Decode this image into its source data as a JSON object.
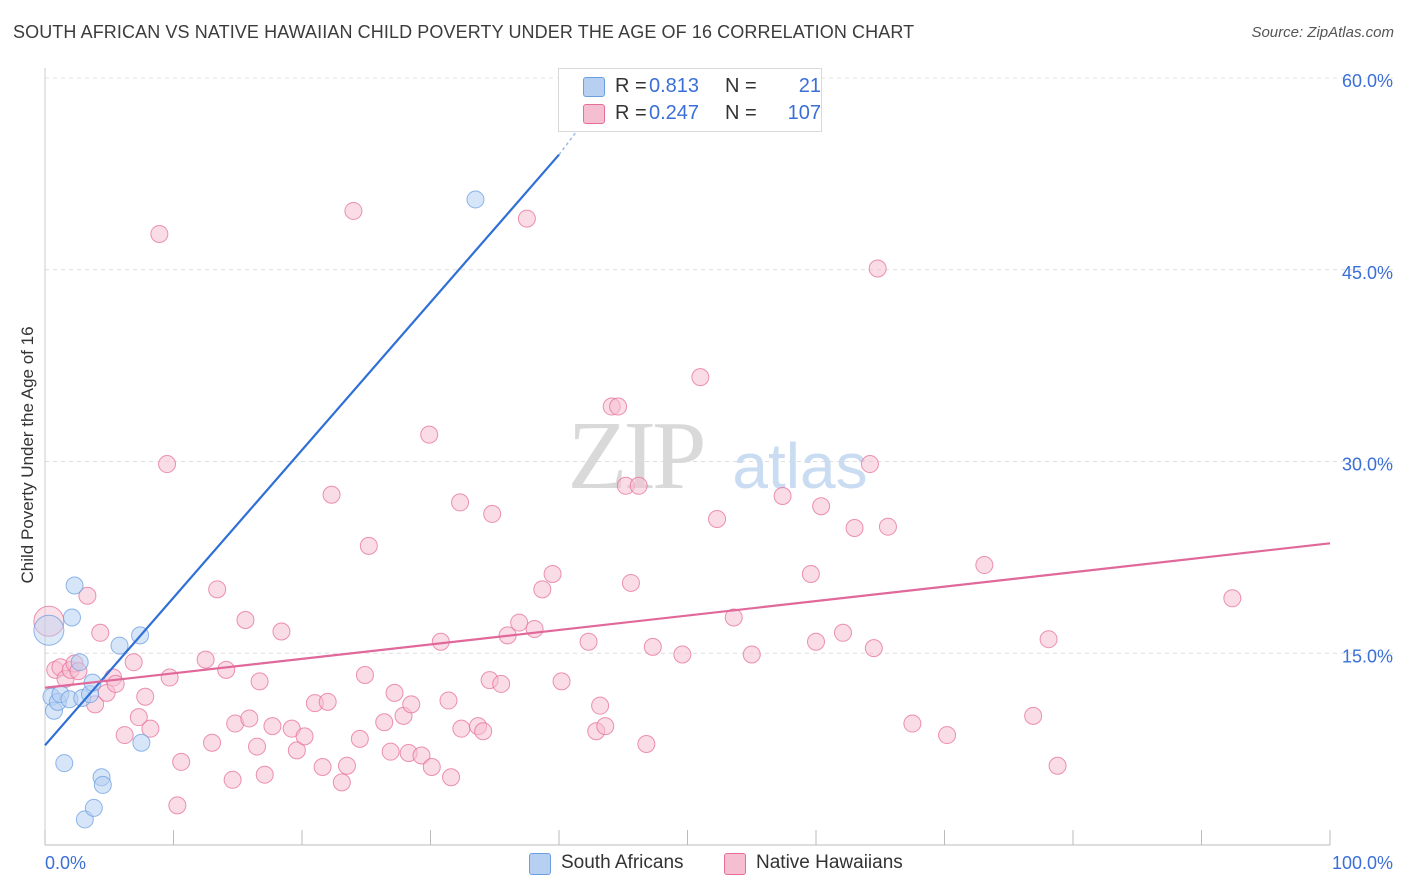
{
  "chart_data": {
    "type": "scatter",
    "title": "SOUTH AFRICAN VS NATIVE HAWAIIAN CHILD POVERTY UNDER THE AGE OF 16 CORRELATION CHART",
    "source": "Source: ZipAtlas.com",
    "ylabel": "Child Poverty Under the Age of 16",
    "xlabel": "",
    "xlim": [
      0,
      100
    ],
    "ylim": [
      0,
      60
    ],
    "x_tick_labels": [
      "0.0%",
      "100.0%"
    ],
    "y_ticks": [
      15,
      30,
      45,
      60
    ],
    "y_tick_labels": [
      "15.0%",
      "30.0%",
      "45.0%",
      "60.0%"
    ],
    "grid": true,
    "watermark": "ZIPatlas",
    "legend": {
      "placement": "top-center",
      "rows": [
        {
          "r_label": "R =",
          "r_value": "0.813",
          "n_label": "N =",
          "n_value": "21"
        },
        {
          "r_label": "R =",
          "r_value": "0.247",
          "n_label": "N =",
          "n_value": "107"
        }
      ]
    },
    "series": [
      {
        "name": "South Africans",
        "color": "#6b9fe0",
        "fill": "#b7d0f2",
        "trend": {
          "x": [
            0,
            40
          ],
          "y": [
            7.8,
            54
          ]
        },
        "trend_dashed": {
          "x": [
            40,
            41.5
          ],
          "y": [
            54,
            56
          ]
        },
        "points": [
          [
            0.3,
            16.8
          ],
          [
            0.5,
            11.6
          ],
          [
            0.7,
            10.5
          ],
          [
            1.0,
            11.2
          ],
          [
            1.2,
            11.8
          ],
          [
            1.5,
            6.4
          ],
          [
            1.9,
            11.4
          ],
          [
            2.1,
            17.8
          ],
          [
            2.3,
            20.3
          ],
          [
            2.7,
            14.3
          ],
          [
            2.9,
            11.5
          ],
          [
            3.1,
            2.0
          ],
          [
            3.5,
            11.8
          ],
          [
            3.7,
            12.7
          ],
          [
            3.8,
            2.9
          ],
          [
            4.4,
            5.3
          ],
          [
            4.5,
            4.7
          ],
          [
            5.8,
            15.6
          ],
          [
            7.4,
            16.4
          ],
          [
            7.5,
            8.0
          ],
          [
            33.5,
            50.5
          ]
        ]
      },
      {
        "name": "Native Hawaiians",
        "color": "#e56f9a",
        "fill": "#f6bfd1",
        "trend": {
          "x": [
            0,
            100
          ],
          "y": [
            12.3,
            23.6
          ]
        },
        "points": [
          [
            0.3,
            17.5
          ],
          [
            0.8,
            13.7
          ],
          [
            1.2,
            13.9
          ],
          [
            1.6,
            13.0
          ],
          [
            2.0,
            13.7
          ],
          [
            2.3,
            14.2
          ],
          [
            2.6,
            13.6
          ],
          [
            3.3,
            19.5
          ],
          [
            3.9,
            11.0
          ],
          [
            4.3,
            16.6
          ],
          [
            4.8,
            11.9
          ],
          [
            5.3,
            13.1
          ],
          [
            5.5,
            12.6
          ],
          [
            6.2,
            8.6
          ],
          [
            6.9,
            14.3
          ],
          [
            7.3,
            10.0
          ],
          [
            7.8,
            11.6
          ],
          [
            8.2,
            9.1
          ],
          [
            8.9,
            47.8
          ],
          [
            9.5,
            29.8
          ],
          [
            9.7,
            13.1
          ],
          [
            10.3,
            3.1
          ],
          [
            10.6,
            6.5
          ],
          [
            12.5,
            14.5
          ],
          [
            13.0,
            8.0
          ],
          [
            13.4,
            20.0
          ],
          [
            14.1,
            13.7
          ],
          [
            14.6,
            5.1
          ],
          [
            14.8,
            9.5
          ],
          [
            15.6,
            17.6
          ],
          [
            15.9,
            9.9
          ],
          [
            16.5,
            7.7
          ],
          [
            16.7,
            12.8
          ],
          [
            17.1,
            5.5
          ],
          [
            17.7,
            9.3
          ],
          [
            18.4,
            16.7
          ],
          [
            19.2,
            9.1
          ],
          [
            19.6,
            7.4
          ],
          [
            20.2,
            8.5
          ],
          [
            21.0,
            11.1
          ],
          [
            21.6,
            6.1
          ],
          [
            22.0,
            11.2
          ],
          [
            22.3,
            27.4
          ],
          [
            23.1,
            4.9
          ],
          [
            23.5,
            6.2
          ],
          [
            24.0,
            49.6
          ],
          [
            24.5,
            8.3
          ],
          [
            24.9,
            13.3
          ],
          [
            25.2,
            23.4
          ],
          [
            26.4,
            9.6
          ],
          [
            26.9,
            7.3
          ],
          [
            27.2,
            11.9
          ],
          [
            27.9,
            10.1
          ],
          [
            28.3,
            7.2
          ],
          [
            28.5,
            11.0
          ],
          [
            29.3,
            7.0
          ],
          [
            29.9,
            32.1
          ],
          [
            30.1,
            6.1
          ],
          [
            30.8,
            15.9
          ],
          [
            31.4,
            11.3
          ],
          [
            31.6,
            5.3
          ],
          [
            32.3,
            26.8
          ],
          [
            32.4,
            9.1
          ],
          [
            33.7,
            9.3
          ],
          [
            34.1,
            8.9
          ],
          [
            34.6,
            12.9
          ],
          [
            34.8,
            25.9
          ],
          [
            35.5,
            12.6
          ],
          [
            36.0,
            16.4
          ],
          [
            36.9,
            17.4
          ],
          [
            37.5,
            49.0
          ],
          [
            38.1,
            16.9
          ],
          [
            38.7,
            20.0
          ],
          [
            39.5,
            21.2
          ],
          [
            40.2,
            12.8
          ],
          [
            42.3,
            15.9
          ],
          [
            42.9,
            8.9
          ],
          [
            43.2,
            10.9
          ],
          [
            43.6,
            9.3
          ],
          [
            44.1,
            34.3
          ],
          [
            44.6,
            34.3
          ],
          [
            45.2,
            28.1
          ],
          [
            45.6,
            20.5
          ],
          [
            46.2,
            28.1
          ],
          [
            46.8,
            7.9
          ],
          [
            47.3,
            15.5
          ],
          [
            49.6,
            14.9
          ],
          [
            51.0,
            36.6
          ],
          [
            52.3,
            25.5
          ],
          [
            53.6,
            17.8
          ],
          [
            55.0,
            14.9
          ],
          [
            57.4,
            27.3
          ],
          [
            59.6,
            21.2
          ],
          [
            60.0,
            15.9
          ],
          [
            60.4,
            26.5
          ],
          [
            62.1,
            16.6
          ],
          [
            63.0,
            24.8
          ],
          [
            64.2,
            29.8
          ],
          [
            64.5,
            15.4
          ],
          [
            64.8,
            45.1
          ],
          [
            65.6,
            24.9
          ],
          [
            67.5,
            9.5
          ],
          [
            70.2,
            8.6
          ],
          [
            73.1,
            21.9
          ],
          [
            76.9,
            10.1
          ],
          [
            78.1,
            16.1
          ],
          [
            78.8,
            6.2
          ],
          [
            92.4,
            19.3
          ]
        ]
      }
    ]
  }
}
